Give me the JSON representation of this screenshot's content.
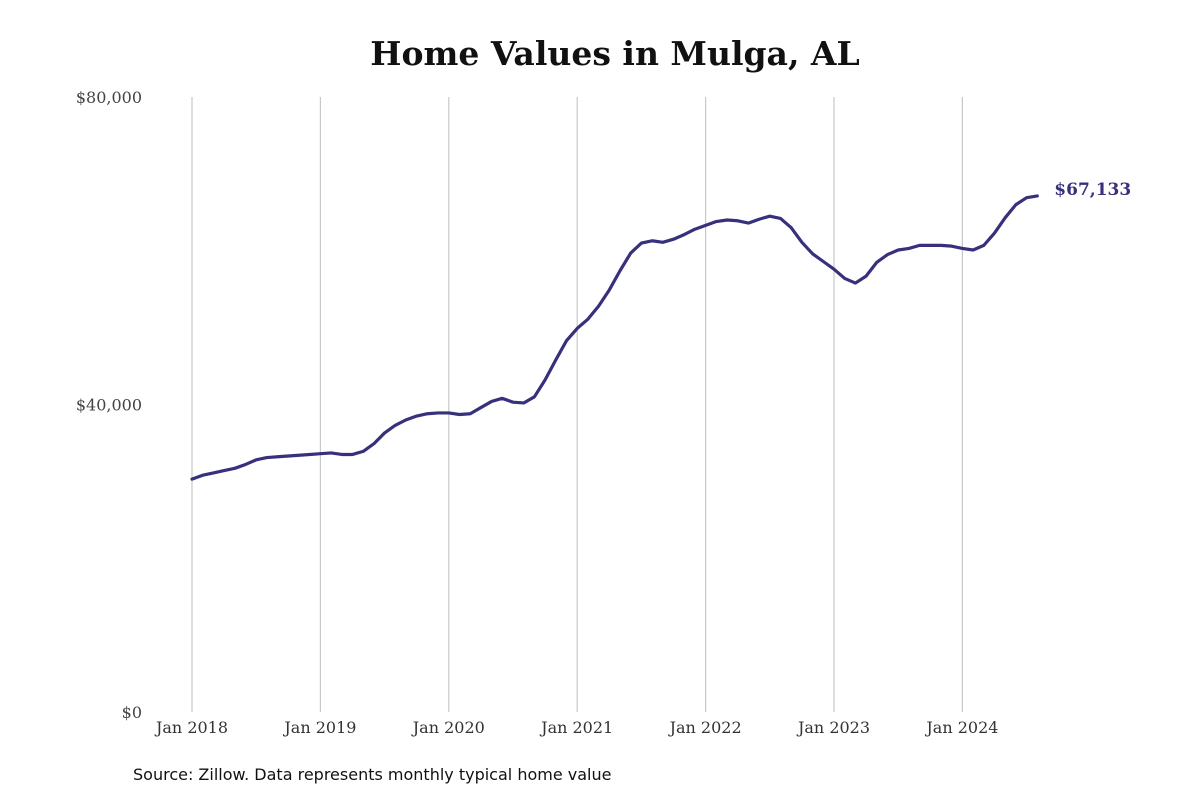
{
  "chart_data": {
    "type": "line",
    "title": "Home Values in Mulga, AL",
    "xlabel": "",
    "ylabel": "",
    "ylim": [
      0,
      80000
    ],
    "xlim": [
      "2018-01",
      "2024-09"
    ],
    "grid": "vertical lines at January ticks",
    "y_tick_values": [
      0,
      40000,
      80000
    ],
    "y_tick_labels": [
      "$0",
      "$40,000",
      "$80,000"
    ],
    "x_tick_labels": [
      "Jan 2018",
      "Jan 2019",
      "Jan 2020",
      "Jan 2021",
      "Jan 2022",
      "Jan 2023",
      "Jan 2024"
    ],
    "x_tick_dates": [
      "2018-01",
      "2019-01",
      "2020-01",
      "2021-01",
      "2022-01",
      "2023-01",
      "2024-01"
    ],
    "end_label": "$67,133",
    "series": [
      {
        "color": "#37307c",
        "points": [
          [
            "2018-01",
            30300
          ],
          [
            "2018-02",
            30800
          ],
          [
            "2018-03",
            31100
          ],
          [
            "2018-04",
            31400
          ],
          [
            "2018-05",
            31700
          ],
          [
            "2018-06",
            32200
          ],
          [
            "2018-07",
            32800
          ],
          [
            "2018-08",
            33100
          ],
          [
            "2018-09",
            33200
          ],
          [
            "2018-10",
            33300
          ],
          [
            "2018-11",
            33400
          ],
          [
            "2018-12",
            33500
          ],
          [
            "2019-01",
            33600
          ],
          [
            "2019-02",
            33700
          ],
          [
            "2019-03",
            33500
          ],
          [
            "2019-04",
            33500
          ],
          [
            "2019-05",
            33900
          ],
          [
            "2019-06",
            34900
          ],
          [
            "2019-07",
            36300
          ],
          [
            "2019-08",
            37300
          ],
          [
            "2019-09",
            38000
          ],
          [
            "2019-10",
            38500
          ],
          [
            "2019-11",
            38800
          ],
          [
            "2019-12",
            38900
          ],
          [
            "2020-01",
            38900
          ],
          [
            "2020-02",
            38700
          ],
          [
            "2020-03",
            38800
          ],
          [
            "2020-04",
            39600
          ],
          [
            "2020-05",
            40400
          ],
          [
            "2020-06",
            40800
          ],
          [
            "2020-07",
            40300
          ],
          [
            "2020-08",
            40200
          ],
          [
            "2020-09",
            41000
          ],
          [
            "2020-10",
            43200
          ],
          [
            "2020-11",
            45800
          ],
          [
            "2020-12",
            48300
          ],
          [
            "2021-01",
            49900
          ],
          [
            "2021-02",
            51100
          ],
          [
            "2021-03",
            52800
          ],
          [
            "2021-04",
            54900
          ],
          [
            "2021-05",
            57400
          ],
          [
            "2021-06",
            59700
          ],
          [
            "2021-07",
            61000
          ],
          [
            "2021-08",
            61300
          ],
          [
            "2021-09",
            61100
          ],
          [
            "2021-10",
            61500
          ],
          [
            "2021-11",
            62100
          ],
          [
            "2021-12",
            62800
          ],
          [
            "2022-01",
            63300
          ],
          [
            "2022-02",
            63800
          ],
          [
            "2022-03",
            64000
          ],
          [
            "2022-04",
            63900
          ],
          [
            "2022-05",
            63600
          ],
          [
            "2022-06",
            64100
          ],
          [
            "2022-07",
            64500
          ],
          [
            "2022-08",
            64200
          ],
          [
            "2022-09",
            63000
          ],
          [
            "2022-10",
            61100
          ],
          [
            "2022-11",
            59600
          ],
          [
            "2022-12",
            58600
          ],
          [
            "2023-01",
            57600
          ],
          [
            "2023-02",
            56400
          ],
          [
            "2023-03",
            55800
          ],
          [
            "2023-04",
            56700
          ],
          [
            "2023-05",
            58500
          ],
          [
            "2023-06",
            59500
          ],
          [
            "2023-07",
            60100
          ],
          [
            "2023-08",
            60300
          ],
          [
            "2023-09",
            60700
          ],
          [
            "2023-10",
            60700
          ],
          [
            "2023-11",
            60700
          ],
          [
            "2023-12",
            60600
          ],
          [
            "2024-01",
            60300
          ],
          [
            "2024-02",
            60100
          ],
          [
            "2024-03",
            60700
          ],
          [
            "2024-04",
            62300
          ],
          [
            "2024-05",
            64300
          ],
          [
            "2024-06",
            66000
          ],
          [
            "2024-07",
            66900
          ],
          [
            "2024-08",
            67133
          ]
        ]
      }
    ]
  },
  "source_note": "Source: Zillow. Data represents monthly typical home value"
}
